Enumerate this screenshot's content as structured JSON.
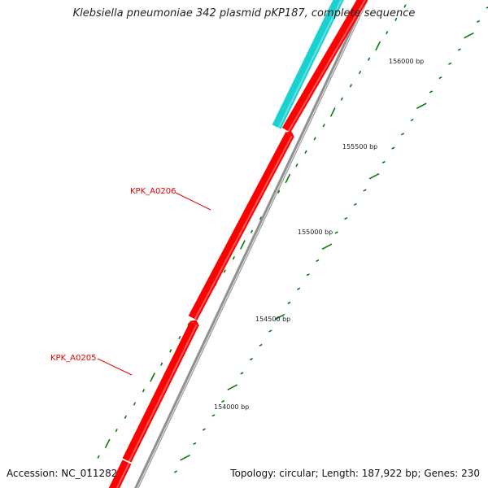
{
  "title": "Klebsiella pneumoniae 342 plasmid pKP187, complete sequence",
  "footer": {
    "accession": "Accession: NC_011282",
    "summary": "Topology: circular; Length: 187,922 bp; Genes: 230"
  },
  "colors": {
    "forward_gene": "#ff0000",
    "reverse_gene": "#1ad0d0",
    "backbone": "#909090",
    "tick": "#0a7a0a",
    "label": "#e00000"
  },
  "genes": [
    {
      "name": "KPK_A0205",
      "strand": "forward",
      "labeled": true
    },
    {
      "name": "KPK_A0206",
      "strand": "forward",
      "labeled": true
    },
    {
      "name": "",
      "strand": "forward",
      "labeled": false
    },
    {
      "name": "",
      "strand": "reverse",
      "labeled": false
    }
  ],
  "ruler": {
    "unit": "bp",
    "labels": [
      "154000 bp",
      "154500 bp",
      "155000 bp",
      "155500 bp",
      "156000 bp"
    ]
  }
}
